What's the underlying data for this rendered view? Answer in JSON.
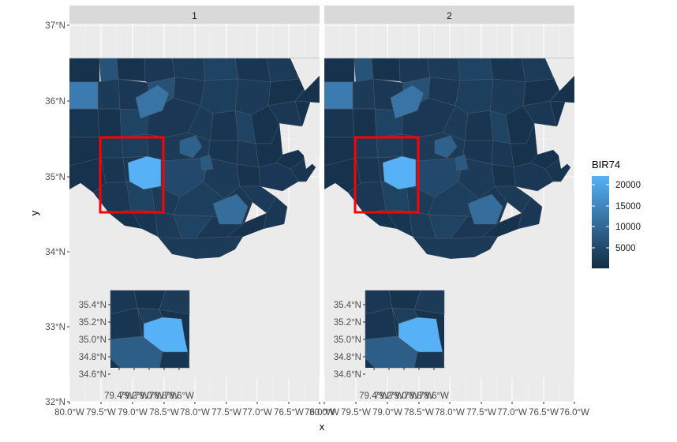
{
  "chart_data": {
    "type": "map",
    "facets": [
      "1",
      "2"
    ],
    "xlabel": "x",
    "ylabel": "y",
    "x_ticks": [
      "80.0°W",
      "79.5°W",
      "79.0°W",
      "78.5°W",
      "78.0°W",
      "77.5°W",
      "77.0°W",
      "76.5°W",
      "76.0°W"
    ],
    "y_ticks": [
      "32°N",
      "33°N",
      "34°N",
      "35°N",
      "36°N",
      "37°N"
    ],
    "xlim": [
      -80.0,
      -76.0
    ],
    "ylim": [
      32,
      37
    ],
    "inset": {
      "y_ticks": [
        "35.4°N",
        "35.2°N",
        "35.0°N",
        "34.8°N",
        "34.6°N"
      ],
      "x_ticks": [
        "79.4°W",
        "79.2°W",
        "79.0°W",
        "78.8°W",
        "78.6°W"
      ]
    },
    "zoom_box": {
      "lon": [
        -79.5,
        -78.5
      ],
      "lat": [
        34.5,
        35.5
      ],
      "color": "#ff0000"
    },
    "legend": {
      "title": "BIR74",
      "breaks": [
        "20000",
        "15000",
        "10000",
        "5000"
      ],
      "low_color": "#132b43",
      "high_color": "#56b1f7"
    }
  }
}
